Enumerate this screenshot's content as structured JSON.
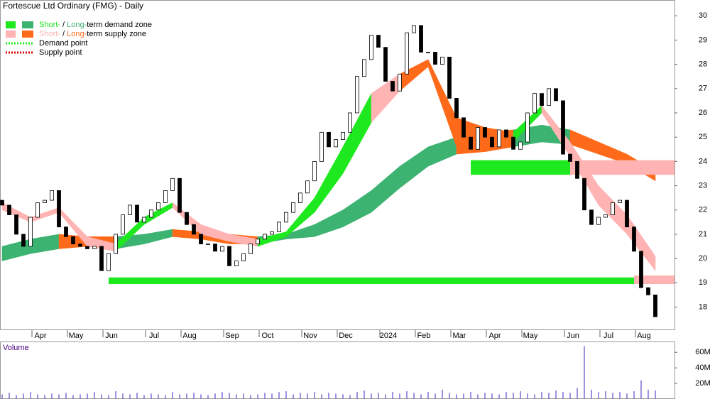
{
  "chart_data": {
    "type": "candlestick",
    "title": "Fortescue Ltd Ordinary (FMG) - Daily",
    "categories": [
      null,
      null,
      null,
      null,
      null,
      "Apr",
      null,
      null,
      null,
      null,
      "May",
      null,
      null,
      null,
      null,
      "Jun",
      null,
      null,
      null,
      null,
      null,
      "Jul",
      null,
      null,
      null,
      null,
      "Aug",
      null,
      null,
      null,
      null,
      null,
      "Sep",
      null,
      null,
      null,
      null,
      "Oct",
      null,
      null,
      null,
      null,
      null,
      "Nov",
      null,
      null,
      null,
      null,
      "Dec",
      null,
      null,
      null,
      null,
      null,
      "2024",
      null,
      null,
      null,
      null,
      "Feb",
      null,
      null,
      null,
      null,
      "Mar",
      null,
      null,
      null,
      null,
      "Apr",
      null,
      null,
      null,
      null,
      "May",
      null,
      null,
      null,
      null,
      null,
      "Jun",
      null,
      null,
      null,
      null,
      "Jul",
      null,
      null,
      null,
      null,
      "Aug",
      null,
      null
    ],
    "open": [
      22.4,
      22.2,
      21.8,
      21.0,
      20.5,
      21.7,
      22.3,
      22.4,
      22.8,
      21.3,
      20.9,
      20.6,
      20.5,
      20.4,
      20.5,
      19.5,
      20.2,
      21.0,
      21.8,
      22.2,
      21.5,
      21.7,
      22.0,
      22.3,
      22.8,
      23.3,
      21.9,
      21.4,
      21.0,
      20.6,
      20.6,
      20.3,
      20.5,
      19.7,
      19.9,
      20.2,
      20.6,
      20.8,
      21.0,
      21.1,
      21.5,
      21.9,
      22.3,
      22.7,
      23.2,
      24.0,
      25.2,
      24.6,
      24.9,
      25.2,
      26.0,
      27.5,
      28.2,
      29.2,
      28.7,
      27.3,
      26.9,
      27.6,
      29.3,
      29.6,
      28.5,
      28.5,
      28.0,
      28.3,
      26.6,
      25.8,
      25.0,
      24.5,
      25.4,
      25.0,
      24.6,
      25.3,
      25.0,
      24.5,
      24.8,
      26.0,
      26.8,
      26.3,
      27.0,
      26.5,
      24.3,
      24.0,
      23.3,
      22.0,
      21.4,
      21.7,
      21.8,
      22.3,
      22.4,
      21.3,
      20.3,
      18.8,
      18.5
    ],
    "close": [
      22.2,
      21.8,
      21.0,
      20.5,
      21.7,
      22.3,
      22.4,
      22.8,
      21.3,
      20.9,
      20.6,
      20.5,
      20.4,
      20.5,
      19.5,
      20.2,
      21.0,
      21.8,
      22.2,
      21.5,
      21.7,
      22.0,
      22.3,
      22.8,
      23.3,
      21.9,
      21.4,
      21.0,
      20.6,
      20.6,
      20.3,
      20.5,
      19.7,
      19.9,
      20.2,
      20.6,
      20.8,
      21.0,
      21.1,
      21.5,
      21.9,
      22.3,
      22.7,
      23.2,
      24.0,
      25.2,
      24.6,
      24.9,
      25.2,
      26.0,
      27.5,
      28.2,
      29.2,
      28.7,
      27.3,
      26.9,
      27.6,
      29.3,
      29.6,
      28.5,
      28.5,
      28.0,
      28.3,
      26.6,
      25.8,
      25.0,
      24.5,
      25.4,
      25.0,
      24.6,
      25.3,
      25.0,
      24.5,
      24.8,
      26.0,
      26.8,
      26.3,
      27.0,
      26.5,
      24.3,
      24.0,
      23.3,
      22.0,
      21.4,
      21.7,
      21.8,
      22.3,
      22.4,
      21.3,
      20.3,
      18.8,
      18.5,
      17.6
    ],
    "ylim": [
      17.05,
      30.65
    ],
    "yticks": [
      18,
      19,
      20,
      21,
      22,
      23,
      24,
      25,
      26,
      27,
      28,
      29,
      30
    ],
    "bands": [
      {
        "points_at": [
          0,
          4,
          8,
          12,
          16,
          20,
          24,
          28,
          32,
          36,
          40,
          44,
          48,
          52,
          56,
          60,
          64,
          68,
          72,
          76,
          80,
          84,
          88,
          92
        ],
        "upper": [
          20.5,
          20.8,
          21.0,
          20.9,
          20.9,
          21.0,
          21.2,
          21.1,
          21.0,
          20.9,
          21.0,
          21.4,
          22.0,
          22.8,
          23.8,
          24.6,
          25.0,
          25.2,
          25.3,
          25.5,
          25.3,
          24.8,
          24.3,
          23.6
        ],
        "lower": [
          19.9,
          20.2,
          20.4,
          20.5,
          20.4,
          20.6,
          20.9,
          20.8,
          20.6,
          20.6,
          20.8,
          20.9,
          21.3,
          21.9,
          22.9,
          23.8,
          24.3,
          24.4,
          24.6,
          24.8,
          24.7,
          24.3,
          23.9,
          23.2
        ],
        "colors": [
          "#3cb371",
          "#3cb371",
          "#ff6a1a",
          "#ff6a1a",
          "#3cb371",
          "#3cb371",
          "#ff6a1a",
          "#ff6a1a",
          "#ff6a1a",
          "#3cb371",
          "#3cb371",
          "#3cb371",
          "#3cb371",
          "#3cb371",
          "#3cb371",
          "#3cb371",
          "#ff6a1a",
          "#ff6a1a",
          "#3cb371",
          "#3cb371",
          "#ff6a1a",
          "#ff6a1a",
          "#ff6a1a"
        ]
      },
      {
        "points_at": [
          0,
          4,
          8,
          12,
          16,
          20,
          24,
          28,
          32,
          36,
          40,
          44,
          48,
          52,
          56,
          60,
          64,
          68,
          72,
          76,
          80,
          84,
          88,
          92
        ],
        "upper": [
          22.3,
          21.7,
          22.1,
          20.9,
          20.6,
          21.7,
          22.3,
          21.4,
          21.0,
          20.8,
          21.1,
          22.5,
          24.6,
          26.8,
          27.6,
          28.2,
          25.8,
          25.4,
          25.2,
          26.3,
          24.8,
          23.0,
          21.8,
          20.1
        ],
        "lower": [
          22.0,
          21.5,
          21.9,
          20.5,
          20.3,
          21.4,
          22.1,
          21.0,
          20.7,
          20.5,
          20.9,
          21.9,
          23.5,
          25.6,
          26.9,
          27.9,
          24.6,
          24.6,
          24.8,
          26.0,
          24.2,
          22.2,
          21.0,
          19.5
        ],
        "colors": [
          "#ffb3b3",
          "#ffb3b3",
          "#ffb3b3",
          "#ffb3b3",
          "#1ee81e",
          "#1ee81e",
          "#ffb3b3",
          "#ffb3b3",
          "#ffb3b3",
          "#1ee81e",
          "#1ee81e",
          "#1ee81e",
          "#1ee81e",
          "#ffb3b3",
          "#ff6a1a",
          "#ff6a1a",
          "#ff6a1a",
          "#ff6a1a",
          "#1ee81e",
          "#ffb3b3",
          "#ffb3b3",
          "#ffb3b3",
          "#ffb3b3"
        ]
      }
    ],
    "zones": [
      {
        "color": "#1ee81e",
        "start": 15,
        "end": 89,
        "top": 19.22,
        "bottom": 18.95
      },
      {
        "color": "#1ee81e",
        "start": 66,
        "end": 80,
        "top": 24.05,
        "bottom": 23.45
      },
      {
        "color": "#ffb3b3",
        "start": 80,
        "end": 92,
        "top": 24.05,
        "bottom": 23.45
      },
      {
        "color": "#ffb3b3",
        "start": 89,
        "end": 92,
        "top": 19.3,
        "bottom": 18.95
      }
    ],
    "legend": [
      {
        "swatches": [
          "#1ee81e",
          "#3cb371"
        ],
        "parts": [
          {
            "text": "Short-",
            "color": "#1ee81e"
          },
          {
            "text": " / ",
            "color": "#000000"
          },
          {
            "text": "Long-",
            "color": "#3cb371"
          },
          {
            "text": "term demand zone",
            "color": "#000000"
          }
        ]
      },
      {
        "swatches": [
          "#ffb3b3",
          "#ff6a1a"
        ],
        "parts": [
          {
            "text": "Short-",
            "color": "#ffb3b3"
          },
          {
            "text": " / ",
            "color": "#000000"
          },
          {
            "text": "Long-",
            "color": "#ff6a1a"
          },
          {
            "text": "term supply zone",
            "color": "#000000"
          }
        ]
      },
      {
        "dotted": "#1ee81e",
        "parts": [
          {
            "text": "Demand point",
            "color": "#000000"
          }
        ]
      },
      {
        "dotted": "#e00000",
        "parts": [
          {
            "text": "Supply point",
            "color": "#000000"
          }
        ]
      }
    ],
    "volume": {
      "label": "Volume",
      "color": "#7b6fd6",
      "values": [
        6,
        8,
        5,
        7,
        9,
        6,
        5,
        7,
        6,
        8,
        5,
        6,
        7,
        9,
        6,
        5,
        10,
        7,
        6,
        8,
        5,
        7,
        6,
        5,
        9,
        6,
        7,
        8,
        6,
        5,
        7,
        9,
        8,
        6,
        7,
        5,
        6,
        8,
        7,
        9,
        10,
        6,
        8,
        7,
        9,
        6,
        8,
        7,
        6,
        5,
        9,
        11,
        7,
        8,
        6,
        9,
        7,
        10,
        8,
        6,
        9,
        7,
        12,
        8,
        6,
        7,
        9,
        6,
        8,
        7,
        6,
        9,
        8,
        10,
        7,
        6,
        9,
        8,
        11,
        9,
        8,
        14,
        68,
        12,
        9,
        10,
        8,
        9,
        7,
        10,
        24,
        12,
        11
      ],
      "ylim": [
        0,
        73
      ],
      "yticks": [
        {
          "value": 20,
          "label": "20M"
        },
        {
          "value": 40,
          "label": "40M"
        },
        {
          "value": 60,
          "label": "60M"
        }
      ]
    }
  }
}
